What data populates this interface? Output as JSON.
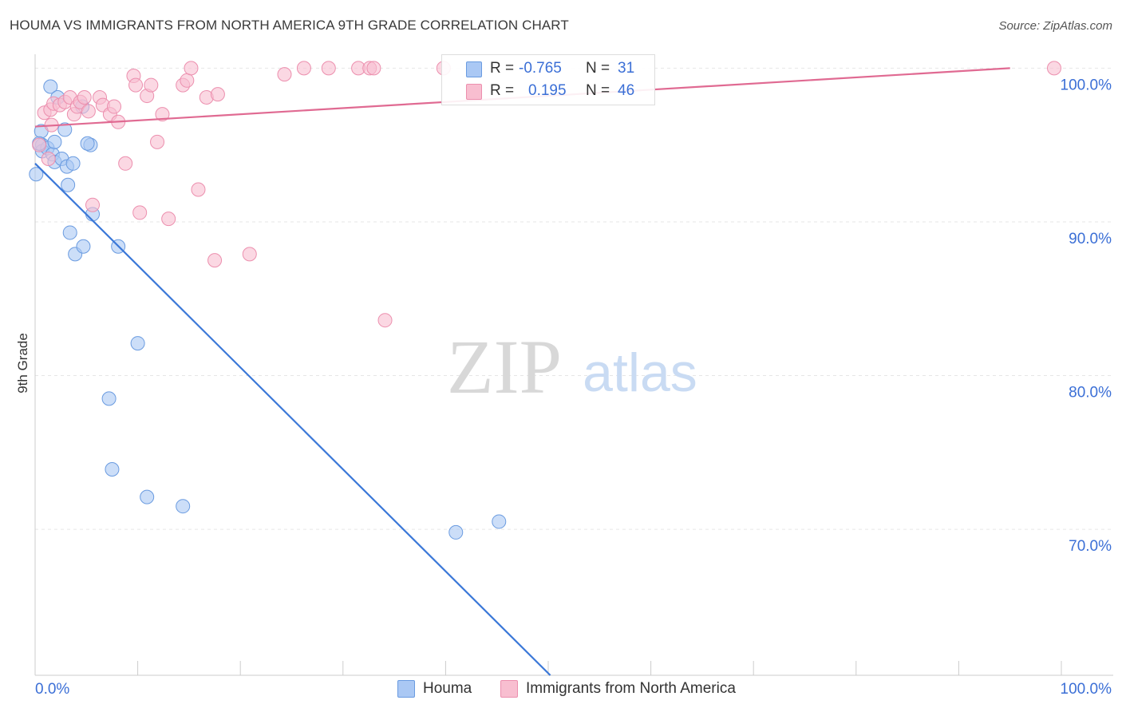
{
  "title": "HOUMA VS IMMIGRANTS FROM NORTH AMERICA 9TH GRADE CORRELATION CHART",
  "source": "Source: ZipAtlas.com",
  "watermark": {
    "zip": "ZIP",
    "atlas": "atlas"
  },
  "legend": {
    "houma": {
      "r_label": "R = ",
      "r_value": "-0.765",
      "n_label": "N = ",
      "n_value": "31"
    },
    "immigrants": {
      "r_label": "R = ",
      "r_value": "0.195",
      "n_label": "N = ",
      "n_value": "46"
    }
  },
  "bottom_legend": {
    "houma": "Houma",
    "immigrants": "Immigrants from North America"
  },
  "colors": {
    "houma_fill": "#aac8f4",
    "houma_stroke": "#6a9be0",
    "houma_line": "#3b78d8",
    "imm_fill": "#f8bed0",
    "imm_stroke": "#ec8fae",
    "imm_line": "#e06a92",
    "axis_text": "#3b6fd6",
    "grid": "#e6e6e6"
  },
  "chart_data": {
    "type": "scatter",
    "title": "HOUMA VS IMMIGRANTS FROM NORTH AMERICA 9TH GRADE CORRELATION CHART",
    "xlabel": "",
    "ylabel": "9th Grade",
    "x_range": [
      0,
      100
    ],
    "y_range": [
      60.5,
      100.8
    ],
    "x_tick_labels": [
      "0.0%",
      "100.0%"
    ],
    "y_ticks": [
      70,
      80,
      90,
      100
    ],
    "y_tick_labels": [
      "70.0%",
      "80.0%",
      "90.0%",
      "100.0%"
    ],
    "series": [
      {
        "name": "Houma",
        "r": -0.765,
        "n": 31,
        "points": [
          [
            0.1,
            93.1
          ],
          [
            0.6,
            95.9
          ],
          [
            0.7,
            95.0
          ],
          [
            0.7,
            94.6
          ],
          [
            1.2,
            94.8
          ],
          [
            1.5,
            98.8
          ],
          [
            1.7,
            94.4
          ],
          [
            1.9,
            93.9
          ],
          [
            1.9,
            95.2
          ],
          [
            2.2,
            98.1
          ],
          [
            2.6,
            94.1
          ],
          [
            2.9,
            96.0
          ],
          [
            3.1,
            93.6
          ],
          [
            3.2,
            92.4
          ],
          [
            3.4,
            89.3
          ],
          [
            3.7,
            93.8
          ],
          [
            3.9,
            87.9
          ],
          [
            4.6,
            97.5
          ],
          [
            4.7,
            88.4
          ],
          [
            5.4,
            95.0
          ],
          [
            5.6,
            90.5
          ],
          [
            5.1,
            95.1
          ],
          [
            8.1,
            88.4
          ],
          [
            7.2,
            78.5
          ],
          [
            7.5,
            73.9
          ],
          [
            10.0,
            82.1
          ],
          [
            10.9,
            72.1
          ],
          [
            14.4,
            71.5
          ],
          [
            41.0,
            69.8
          ],
          [
            45.2,
            70.5
          ],
          [
            0.4,
            95.1
          ]
        ],
        "trend": {
          "x": [
            0,
            50.2
          ],
          "y": [
            93.8,
            60.5
          ]
        }
      },
      {
        "name": "Immigrants from North America",
        "r": 0.195,
        "n": 46,
        "points": [
          [
            0.4,
            95.0
          ],
          [
            0.9,
            97.1
          ],
          [
            1.3,
            94.1
          ],
          [
            1.5,
            97.3
          ],
          [
            1.6,
            96.3
          ],
          [
            1.8,
            97.7
          ],
          [
            2.4,
            97.6
          ],
          [
            2.9,
            97.8
          ],
          [
            3.4,
            98.1
          ],
          [
            3.8,
            97.0
          ],
          [
            4.1,
            97.5
          ],
          [
            4.4,
            97.8
          ],
          [
            4.8,
            98.1
          ],
          [
            5.2,
            97.2
          ],
          [
            5.6,
            91.1
          ],
          [
            6.3,
            98.1
          ],
          [
            6.6,
            97.6
          ],
          [
            7.3,
            97.0
          ],
          [
            7.7,
            97.5
          ],
          [
            8.1,
            96.5
          ],
          [
            8.8,
            93.8
          ],
          [
            9.6,
            99.5
          ],
          [
            9.8,
            98.9
          ],
          [
            10.2,
            90.6
          ],
          [
            10.9,
            98.2
          ],
          [
            11.3,
            98.9
          ],
          [
            11.9,
            95.2
          ],
          [
            12.4,
            97.0
          ],
          [
            13.0,
            90.2
          ],
          [
            14.4,
            98.9
          ],
          [
            14.8,
            99.2
          ],
          [
            15.2,
            100.0
          ],
          [
            15.9,
            92.1
          ],
          [
            16.7,
            98.1
          ],
          [
            17.5,
            87.5
          ],
          [
            17.8,
            98.3
          ],
          [
            20.9,
            87.9
          ],
          [
            24.3,
            99.6
          ],
          [
            26.2,
            100.0
          ],
          [
            28.6,
            100.0
          ],
          [
            31.5,
            100.0
          ],
          [
            32.6,
            100.0
          ],
          [
            33.0,
            100.0
          ],
          [
            34.1,
            83.6
          ],
          [
            39.8,
            100.0
          ],
          [
            99.3,
            100.0
          ]
        ],
        "trend": {
          "x": [
            0,
            95
          ],
          "y": [
            96.2,
            100.0
          ]
        }
      }
    ]
  }
}
